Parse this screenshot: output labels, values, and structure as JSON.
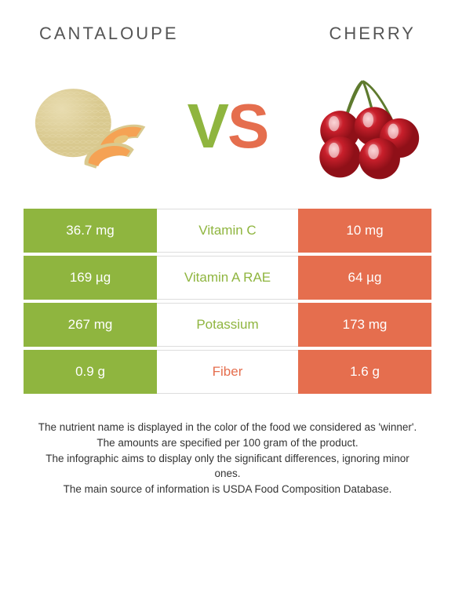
{
  "left": {
    "name": "CANTALOUPE",
    "color": "#8fb53f"
  },
  "right": {
    "name": "CHERRY",
    "color": "#e56e4e"
  },
  "vs": {
    "v_color": "#8fb53f",
    "s_color": "#e56e4e",
    "v": "V",
    "s": "S"
  },
  "rows": [
    {
      "left": "36.7 mg",
      "label": "Vitamin C",
      "winner": "left",
      "right": "10 mg"
    },
    {
      "left": "169 µg",
      "label": "Vitamin A RAE",
      "winner": "left",
      "right": "64 µg"
    },
    {
      "left": "267 mg",
      "label": "Potassium",
      "winner": "left",
      "right": "173 mg"
    },
    {
      "left": "0.9 g",
      "label": "Fiber",
      "winner": "right",
      "right": "1.6 g"
    }
  ],
  "footer": [
    "The nutrient name is displayed in the color of the food we considered as 'winner'.",
    "The amounts are specified per 100 gram of the product.",
    "The infographic aims to display only the significant differences, ignoring minor ones.",
    "The main source of information is USDA Food Composition Database."
  ],
  "cantaloupe_svg": {
    "rind": "#d9c98f",
    "net": "#e8dcb0",
    "flesh": "#f5a254",
    "seed": "#e8c57a"
  },
  "cherry_svg": {
    "body": "#c81f2b",
    "highlight": "#f5a3a8",
    "stem": "#5e7a2e"
  }
}
